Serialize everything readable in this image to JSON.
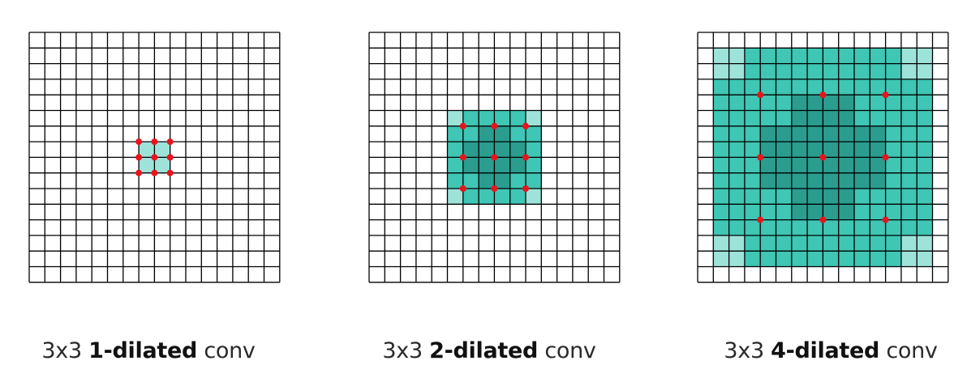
{
  "colors": {
    "light": "#9ee3da",
    "medium": "#3fc6b4",
    "dark": "#2a9d8f",
    "dot": "#e8141c",
    "line": "#000000"
  },
  "grid_size": 16,
  "panels": [
    {
      "caption_prefix": "3x3 ",
      "caption_bold": "1-dilated",
      "caption_suffix": " conv",
      "dilation": 1,
      "dot_cells": [
        [
          7,
          7
        ],
        [
          8,
          7
        ],
        [
          9,
          7
        ],
        [
          7,
          8
        ],
        [
          8,
          8
        ],
        [
          9,
          8
        ],
        [
          7,
          9
        ],
        [
          8,
          9
        ],
        [
          9,
          9
        ]
      ],
      "shading_rects": [
        {
          "c0": 7,
          "r0": 7,
          "c1": 9,
          "r1": 9,
          "level": "light"
        }
      ]
    },
    {
      "caption_prefix": "3x3 ",
      "caption_bold": "2-dilated",
      "caption_suffix": " conv",
      "dilation": 2,
      "dot_cells": [
        [
          6,
          6
        ],
        [
          8,
          6
        ],
        [
          10,
          6
        ],
        [
          6,
          8
        ],
        [
          8,
          8
        ],
        [
          10,
          8
        ],
        [
          6,
          10
        ],
        [
          8,
          10
        ],
        [
          10,
          10
        ]
      ],
      "shading_rects": [
        {
          "c0": 5,
          "r0": 5,
          "c1": 11,
          "r1": 11,
          "level": "light"
        },
        {
          "c0": 6,
          "r0": 5,
          "c1": 10,
          "r1": 11,
          "level": "medium"
        },
        {
          "c0": 5,
          "r0": 6,
          "c1": 11,
          "r1": 10,
          "level": "medium"
        },
        {
          "c0": 7,
          "r0": 6,
          "c1": 9,
          "r1": 10,
          "level": "dark"
        },
        {
          "c0": 6,
          "r0": 7,
          "c1": 10,
          "r1": 9,
          "level": "dark"
        }
      ]
    },
    {
      "caption_prefix": "3x3 ",
      "caption_bold": "4-dilated",
      "caption_suffix": " conv",
      "dilation": 4,
      "dot_cells": [
        [
          4,
          4
        ],
        [
          8,
          4
        ],
        [
          12,
          4
        ],
        [
          4,
          8
        ],
        [
          8,
          8
        ],
        [
          12,
          8
        ],
        [
          4,
          12
        ],
        [
          8,
          12
        ],
        [
          12,
          12
        ]
      ],
      "shading_rects": [
        {
          "c0": 1,
          "r0": 1,
          "c1": 15,
          "r1": 15,
          "level": "light"
        },
        {
          "c0": 3,
          "r0": 1,
          "c1": 13,
          "r1": 15,
          "level": "medium"
        },
        {
          "c0": 1,
          "r0": 3,
          "c1": 15,
          "r1": 13,
          "level": "medium"
        },
        {
          "c0": 6,
          "r0": 4,
          "c1": 10,
          "r1": 12,
          "level": "dark"
        },
        {
          "c0": 4,
          "r0": 6,
          "c1": 12,
          "r1": 10,
          "level": "dark"
        }
      ]
    }
  ]
}
